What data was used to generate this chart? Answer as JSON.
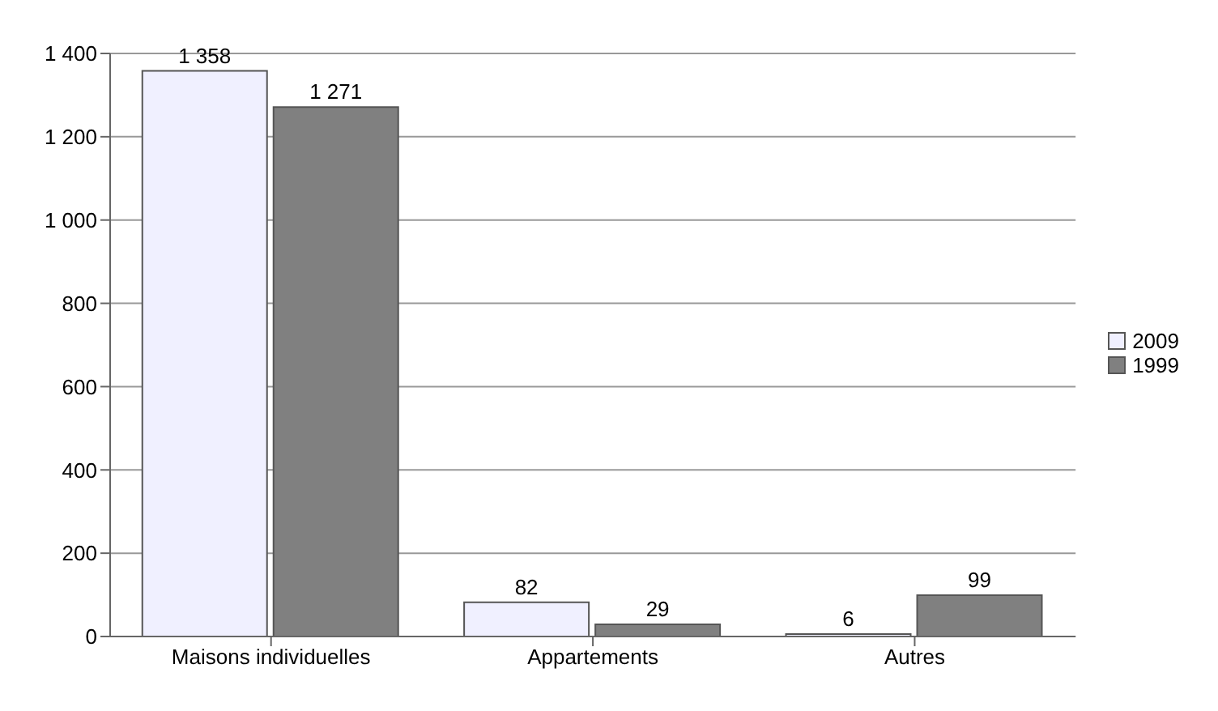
{
  "chart_data": {
    "type": "bar",
    "categories": [
      "Maisons individuelles",
      "Appartements",
      "Autres"
    ],
    "series": [
      {
        "name": "2009",
        "color": "#f0f0ff",
        "values": [
          1358,
          82,
          6
        ],
        "value_labels": [
          "1 358",
          "82",
          "6"
        ]
      },
      {
        "name": "1999",
        "color": "#808080",
        "values": [
          1271,
          29,
          99
        ],
        "value_labels": [
          "1 271",
          "29",
          "99"
        ]
      }
    ],
    "ylim": [
      0,
      1400
    ],
    "yticks": [
      0,
      200,
      400,
      600,
      800,
      {
        "value": 1000,
        "label": "1 000"
      },
      {
        "value": 1200,
        "label": "1 200"
      },
      {
        "value": 1400,
        "label": "1 400"
      }
    ],
    "grid": "y",
    "legend": "right"
  }
}
